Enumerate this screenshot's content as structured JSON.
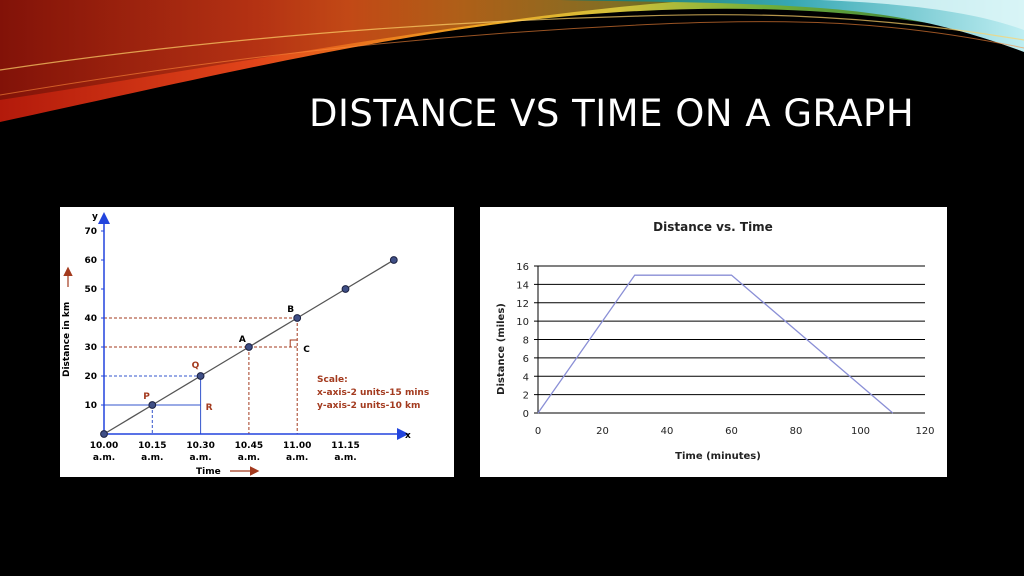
{
  "slide": {
    "title": "DISTANCE VS TIME ON A GRAPH"
  },
  "chart_data": [
    {
      "type": "line",
      "title": "",
      "xlabel": "Time",
      "ylabel": "Distance in km",
      "x_axis_letter": "x",
      "y_axis_letter": "y",
      "x_categories": [
        [
          "10.00",
          "a.m."
        ],
        [
          "10.15",
          "a.m."
        ],
        [
          "10.30",
          "a.m."
        ],
        [
          "10.45",
          "a.m."
        ],
        [
          "11.00",
          "a.m."
        ],
        [
          "11.15",
          "a.m."
        ]
      ],
      "y_ticks": [
        10,
        20,
        30,
        40,
        50,
        60,
        70
      ],
      "ylim": [
        0,
        70
      ],
      "series": [
        {
          "points": [
            [
              0,
              0
            ],
            [
              1,
              10
            ],
            [
              2,
              20
            ],
            [
              3,
              30
            ],
            [
              4,
              40
            ],
            [
              5,
              50
            ],
            [
              6,
              60
            ]
          ]
        }
      ],
      "point_labels": [
        {
          "label": "P",
          "x": 1,
          "y": 10
        },
        {
          "label": "Q",
          "x": 2,
          "y": 20
        },
        {
          "label": "R",
          "x": 2,
          "y": 10
        },
        {
          "label": "A",
          "x": 3,
          "y": 30
        },
        {
          "label": "B",
          "x": 4,
          "y": 40
        },
        {
          "label": "C",
          "x": 4,
          "y": 30
        }
      ],
      "scale_note": {
        "heading": "Scale:",
        "lines": [
          "x-axis-2 units-15 mins",
          "y-axis-2 units-10 km"
        ]
      },
      "colors": {
        "line": "#555555",
        "point": "#3f4f86",
        "blue_guides": "#3355cc",
        "red_guides": "#a33a1e",
        "axis": "#2244dd",
        "text_accent": "#a33a1e"
      },
      "grid": false
    },
    {
      "type": "line",
      "title": "Distance vs. Time",
      "xlabel": "Time (minutes)",
      "ylabel": "Distance (miles)",
      "xlim": [
        0,
        120
      ],
      "ylim": [
        0,
        16
      ],
      "x_ticks": [
        0,
        20,
        40,
        60,
        80,
        100,
        120
      ],
      "y_ticks": [
        0,
        2,
        4,
        6,
        8,
        10,
        12,
        14,
        16
      ],
      "series": [
        {
          "x": [
            0,
            30,
            60,
            110
          ],
          "y": [
            0,
            15,
            15,
            0
          ]
        }
      ],
      "colors": {
        "line": "#8a8fd6",
        "grid": "#000000"
      },
      "grid": true
    }
  ]
}
